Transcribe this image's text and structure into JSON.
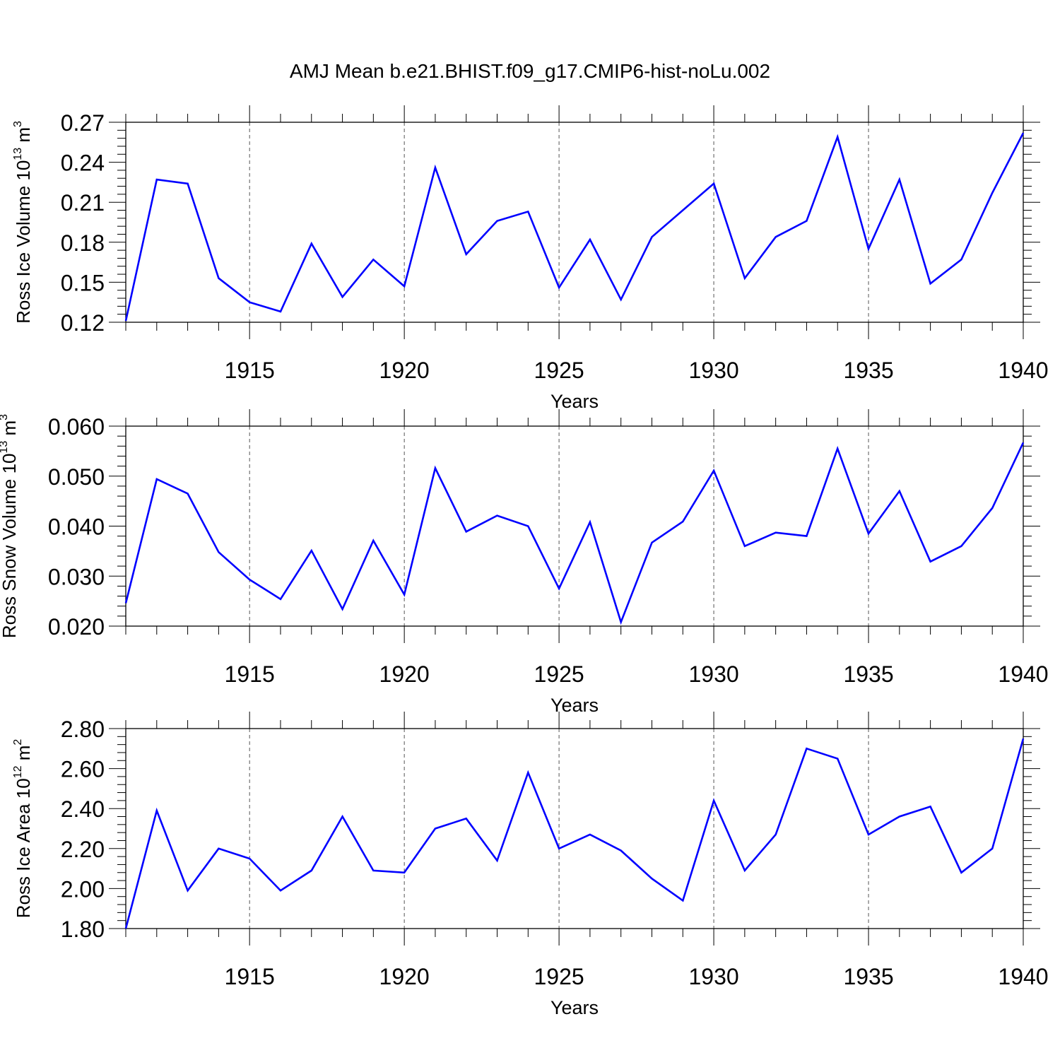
{
  "figure": {
    "title": "AMJ Mean b.e21.BHIST.f09_g17.CMIP6-hist-noLu.002",
    "line_color": "#0000ff"
  },
  "chart_data": [
    {
      "type": "line",
      "ylabel": "Ross Ice Volume 10",
      "ylabel_sup": "13",
      "ylabel_unit": " m",
      "ylabel_unit_sup": "3",
      "xlabel": "Years",
      "xlim": [
        1911,
        1940
      ],
      "ylim": [
        0.12,
        0.27
      ],
      "x_ticks": [
        "1915",
        "1920",
        "1925",
        "1930",
        "1935",
        "1940"
      ],
      "y_ticks": [
        "0.12",
        "0.15",
        "0.18",
        "0.21",
        "0.24",
        "0.27"
      ],
      "grid": "vertical dashed at major x ticks",
      "x": [
        1911,
        1912,
        1913,
        1914,
        1915,
        1916,
        1917,
        1918,
        1919,
        1920,
        1921,
        1922,
        1923,
        1924,
        1925,
        1926,
        1927,
        1928,
        1929,
        1930,
        1931,
        1932,
        1933,
        1934,
        1935,
        1936,
        1937,
        1938,
        1939,
        1940
      ],
      "series": [
        {
          "values": [
            0.121,
            0.227,
            0.224,
            0.153,
            0.135,
            0.128,
            0.179,
            0.139,
            0.167,
            0.147,
            0.236,
            0.171,
            0.196,
            0.203,
            0.146,
            0.182,
            0.137,
            0.184,
            0.204,
            0.224,
            0.153,
            0.184,
            0.196,
            0.259,
            0.175,
            0.227,
            0.149,
            0.167,
            0.217,
            0.262
          ]
        }
      ]
    },
    {
      "type": "line",
      "ylabel": "Ross Snow Volume 10",
      "ylabel_sup": "13",
      "ylabel_unit": " m",
      "ylabel_unit_sup": "3",
      "xlabel": "Years",
      "xlim": [
        1911,
        1940
      ],
      "ylim": [
        0.02,
        0.06
      ],
      "x_ticks": [
        "1915",
        "1920",
        "1925",
        "1930",
        "1935",
        "1940"
      ],
      "y_ticks": [
        "0.020",
        "0.030",
        "0.040",
        "0.050",
        "0.060"
      ],
      "grid": "vertical dashed at major x ticks",
      "x": [
        1911,
        1912,
        1913,
        1914,
        1915,
        1916,
        1917,
        1918,
        1919,
        1920,
        1921,
        1922,
        1923,
        1924,
        1925,
        1926,
        1927,
        1928,
        1929,
        1930,
        1931,
        1932,
        1933,
        1934,
        1935,
        1936,
        1937,
        1938,
        1939,
        1940
      ],
      "series": [
        {
          "values": [
            0.0246,
            0.0494,
            0.0465,
            0.0348,
            0.0293,
            0.0254,
            0.0351,
            0.0234,
            0.0371,
            0.0263,
            0.0516,
            0.0389,
            0.0421,
            0.04,
            0.0275,
            0.0408,
            0.0208,
            0.0367,
            0.0409,
            0.0511,
            0.036,
            0.0387,
            0.038,
            0.0555,
            0.0385,
            0.047,
            0.0329,
            0.036,
            0.0436,
            0.0567
          ]
        }
      ]
    },
    {
      "type": "line",
      "ylabel": "Ross Ice Area 10",
      "ylabel_sup": "12",
      "ylabel_unit": " m",
      "ylabel_unit_sup": "2",
      "xlabel": "Years",
      "xlim": [
        1911,
        1940
      ],
      "ylim": [
        1.8,
        2.8
      ],
      "x_ticks": [
        "1915",
        "1920",
        "1925",
        "1930",
        "1935",
        "1940"
      ],
      "y_ticks": [
        "1.80",
        "2.00",
        "2.20",
        "2.40",
        "2.60",
        "2.80"
      ],
      "grid": "vertical dashed at major x ticks",
      "x": [
        1911,
        1912,
        1913,
        1914,
        1915,
        1916,
        1917,
        1918,
        1919,
        1920,
        1921,
        1922,
        1923,
        1924,
        1925,
        1926,
        1927,
        1928,
        1929,
        1930,
        1931,
        1932,
        1933,
        1934,
        1935,
        1936,
        1937,
        1938,
        1939,
        1940
      ],
      "series": [
        {
          "values": [
            1.8,
            2.39,
            1.99,
            2.2,
            2.15,
            1.99,
            2.09,
            2.36,
            2.09,
            2.08,
            2.3,
            2.35,
            2.14,
            2.58,
            2.2,
            2.27,
            2.19,
            2.05,
            1.94,
            2.44,
            2.09,
            2.27,
            2.7,
            2.65,
            2.27,
            2.36,
            2.41,
            2.08,
            2.2,
            2.75
          ]
        }
      ]
    }
  ]
}
